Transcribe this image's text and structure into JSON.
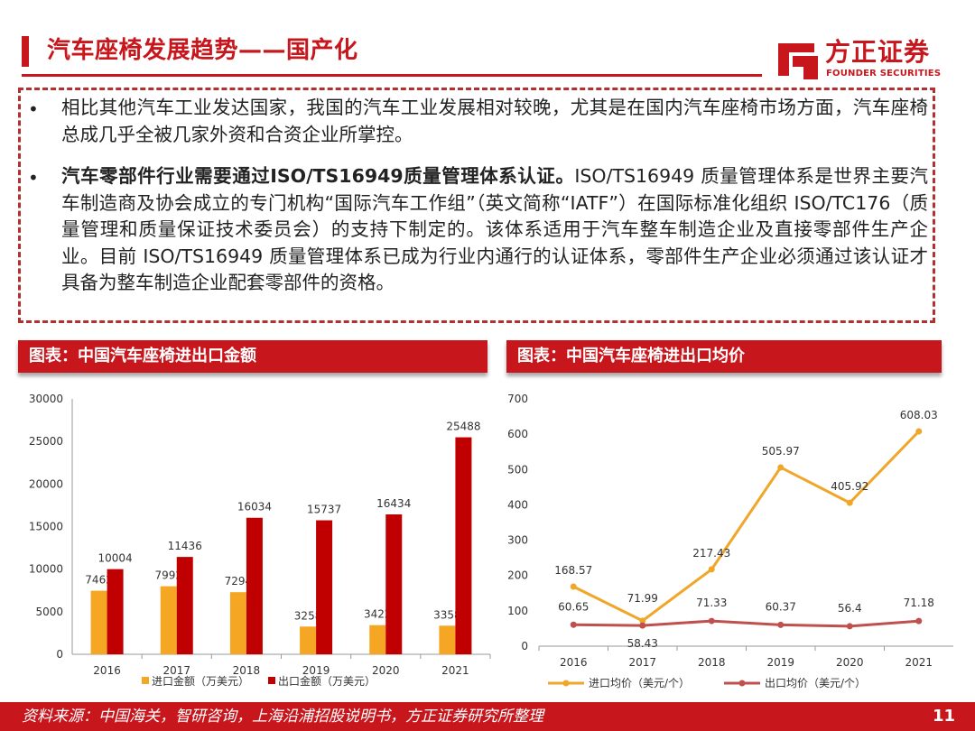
{
  "header": {
    "title": "汽车座椅发展趋势——国产化",
    "logo_cn": "方正证券",
    "logo_en": "FOUNDER SECURITIES"
  },
  "content": {
    "bullet": "•",
    "para1": "相比其他汽车工业发达国家，我国的汽车工业发展相对较晚，尤其是在国内汽车座椅市场方面，汽车座椅总成几乎全被几家外资和合资企业所掌控。",
    "para2_bold": "汽车零部件行业需要通过ISO/TS16949质量管理体系认证。",
    "para2_rest": "ISO/TS16949 质量管理体系是世界主要汽车制造商及协会成立的专门机构“国际汽车工作组”（英文简称“IATF”）在国际标准化组织 ISO/TC176（质量管理和质量保证技术委员会）的支持下制定的。该体系适用于汽车整车制造企业及直接零部件生产企业。目前 ISO/TS16949 质量管理体系已成为行业内通行的认证体系，零部件生产企业必须通过该认证才具备为整车制造企业配套零部件的资格。"
  },
  "sections": {
    "left_title": "图表：中国汽车座椅进出口金额",
    "right_title": "图表：中国汽车座椅进出口均价"
  },
  "colors": {
    "brand": "#c8161d",
    "import": "#f5a623",
    "export": "#c00000",
    "import_line": "#f0a628",
    "export_line": "#c0504d"
  },
  "chart_data": [
    {
      "type": "bar",
      "title": "图表：中国汽车座椅进出口金额",
      "categories": [
        "2016",
        "2017",
        "2018",
        "2019",
        "2020",
        "2021"
      ],
      "series": [
        {
          "name": "进口金额（万美元）",
          "values": [
            7462,
            7992,
            7294,
            3258,
            3422,
            3358
          ]
        },
        {
          "name": "出口金额（万美元）",
          "values": [
            10004,
            11436,
            16034,
            15737,
            16434,
            25488
          ]
        }
      ],
      "ylim": [
        0,
        30000
      ],
      "yticks": [
        0,
        5000,
        10000,
        15000,
        20000,
        25000,
        30000
      ],
      "legend_position": "bottom",
      "grid": false
    },
    {
      "type": "line",
      "title": "图表：中国汽车座椅进出口均价",
      "categories": [
        "2016",
        "2017",
        "2018",
        "2019",
        "2020",
        "2021"
      ],
      "series": [
        {
          "name": "进口均价（美元/个）",
          "values": [
            168.57,
            71.99,
            217.43,
            505.97,
            405.92,
            608.03
          ]
        },
        {
          "name": "出口均价（美元/个）",
          "values": [
            60.65,
            58.43,
            71.33,
            60.37,
            56.4,
            71.18
          ]
        }
      ],
      "ylim": [
        0,
        700
      ],
      "yticks": [
        0,
        100,
        200,
        300,
        400,
        500,
        600,
        700
      ],
      "legend_position": "bottom",
      "grid": false
    }
  ],
  "footer": {
    "source": "资料来源：中国海关，智研咨询，上海沿浦招股说明书，方正证券研究所整理",
    "page": "11"
  }
}
